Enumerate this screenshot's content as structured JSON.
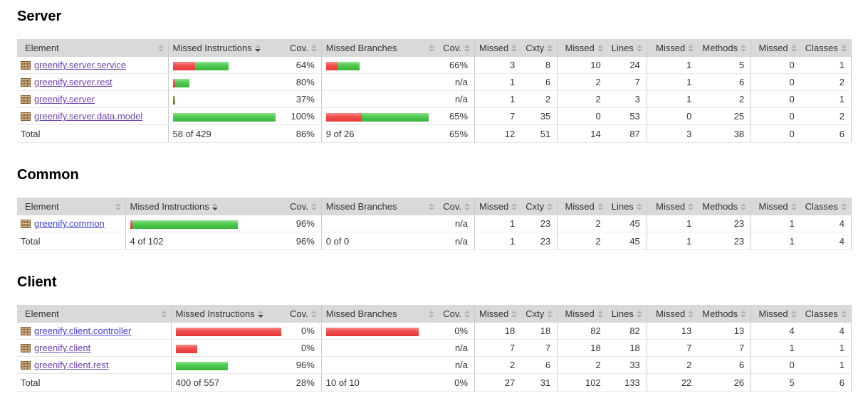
{
  "report": {
    "columns": [
      "Element",
      "Missed Instructions",
      "Cov.",
      "Missed Branches",
      "Cov.",
      "Missed",
      "Cxty",
      "Missed",
      "Lines",
      "Missed",
      "Methods",
      "Missed",
      "Classes"
    ],
    "colors": {
      "bar_missed_red": "#ee3b3b",
      "bar_covered_green": "#46c749",
      "link_visited": "#6b3fae",
      "link_new": "#3f3fd3",
      "header_bg": "#d9d9d9"
    },
    "sections": [
      {
        "title": "Server",
        "sorted_column": 1,
        "rows": [
          {
            "name": "greenify.server.service",
            "visited": true,
            "ins_bar": {
              "red": 31,
              "green": 47
            },
            "br_bar": {
              "red": 16,
              "green": 31
            },
            "values": [
              "64%",
              "66%",
              "3",
              "8",
              "10",
              "24",
              "1",
              "5",
              "0",
              "1"
            ]
          },
          {
            "name": "greenify.server.rest",
            "visited": true,
            "ins_bar": {
              "red": 3,
              "green": 20
            },
            "br_bar": null,
            "values": [
              "80%",
              "n/a",
              "1",
              "6",
              "2",
              "7",
              "1",
              "6",
              "0",
              "2"
            ]
          },
          {
            "name": "greenify.server",
            "visited": true,
            "ins_bar": {
              "red": 2,
              "green": 1
            },
            "br_bar": null,
            "values": [
              "37%",
              "n/a",
              "1",
              "2",
              "2",
              "3",
              "1",
              "2",
              "0",
              "1"
            ]
          },
          {
            "name": "greenify.server.data.model",
            "visited": true,
            "ins_bar": {
              "red": 0,
              "green": 144
            },
            "br_bar": {
              "red": 50,
              "green": 94
            },
            "values": [
              "100%",
              "65%",
              "7",
              "35",
              "0",
              "53",
              "0",
              "25",
              "0",
              "2"
            ]
          }
        ],
        "total": {
          "label": "Total",
          "values": [
            "58 of 429",
            "86%",
            "9 of 26",
            "65%",
            "12",
            "51",
            "14",
            "87",
            "3",
            "38",
            "0",
            "6"
          ]
        }
      },
      {
        "title": "Common",
        "sorted_column": 1,
        "rows": [
          {
            "name": "greenify.common",
            "visited": false,
            "ins_bar": {
              "red": 3,
              "green": 148
            },
            "br_bar": null,
            "values": [
              "96%",
              "n/a",
              "1",
              "23",
              "2",
              "45",
              "1",
              "23",
              "1",
              "4"
            ]
          }
        ],
        "total": {
          "label": "Total",
          "values": [
            "4 of 102",
            "96%",
            "0 of 0",
            "n/a",
            "1",
            "23",
            "2",
            "45",
            "1",
            "23",
            "1",
            "4"
          ]
        }
      },
      {
        "title": "Client",
        "sorted_column": 1,
        "rows": [
          {
            "name": "greenify.client.controller",
            "visited": false,
            "ins_bar": {
              "red": 148,
              "green": 0
            },
            "br_bar": {
              "red": 130,
              "green": 0
            },
            "values": [
              "0%",
              "0%",
              "18",
              "18",
              "82",
              "82",
              "13",
              "13",
              "4",
              "4"
            ]
          },
          {
            "name": "greenify.client",
            "visited": true,
            "ins_bar": {
              "red": 30,
              "green": 0
            },
            "br_bar": null,
            "values": [
              "0%",
              "n/a",
              "7",
              "7",
              "18",
              "18",
              "7",
              "7",
              "1",
              "1"
            ]
          },
          {
            "name": "greenify.client.rest",
            "visited": true,
            "ins_bar": {
              "red": 0,
              "green": 73
            },
            "br_bar": null,
            "values": [
              "96%",
              "n/a",
              "2",
              "6",
              "2",
              "33",
              "2",
              "6",
              "0",
              "1"
            ]
          }
        ],
        "total": {
          "label": "Total",
          "values": [
            "400 of 557",
            "28%",
            "10 of 10",
            "0%",
            "27",
            "31",
            "102",
            "133",
            "22",
            "26",
            "5",
            "6"
          ]
        }
      }
    ]
  }
}
